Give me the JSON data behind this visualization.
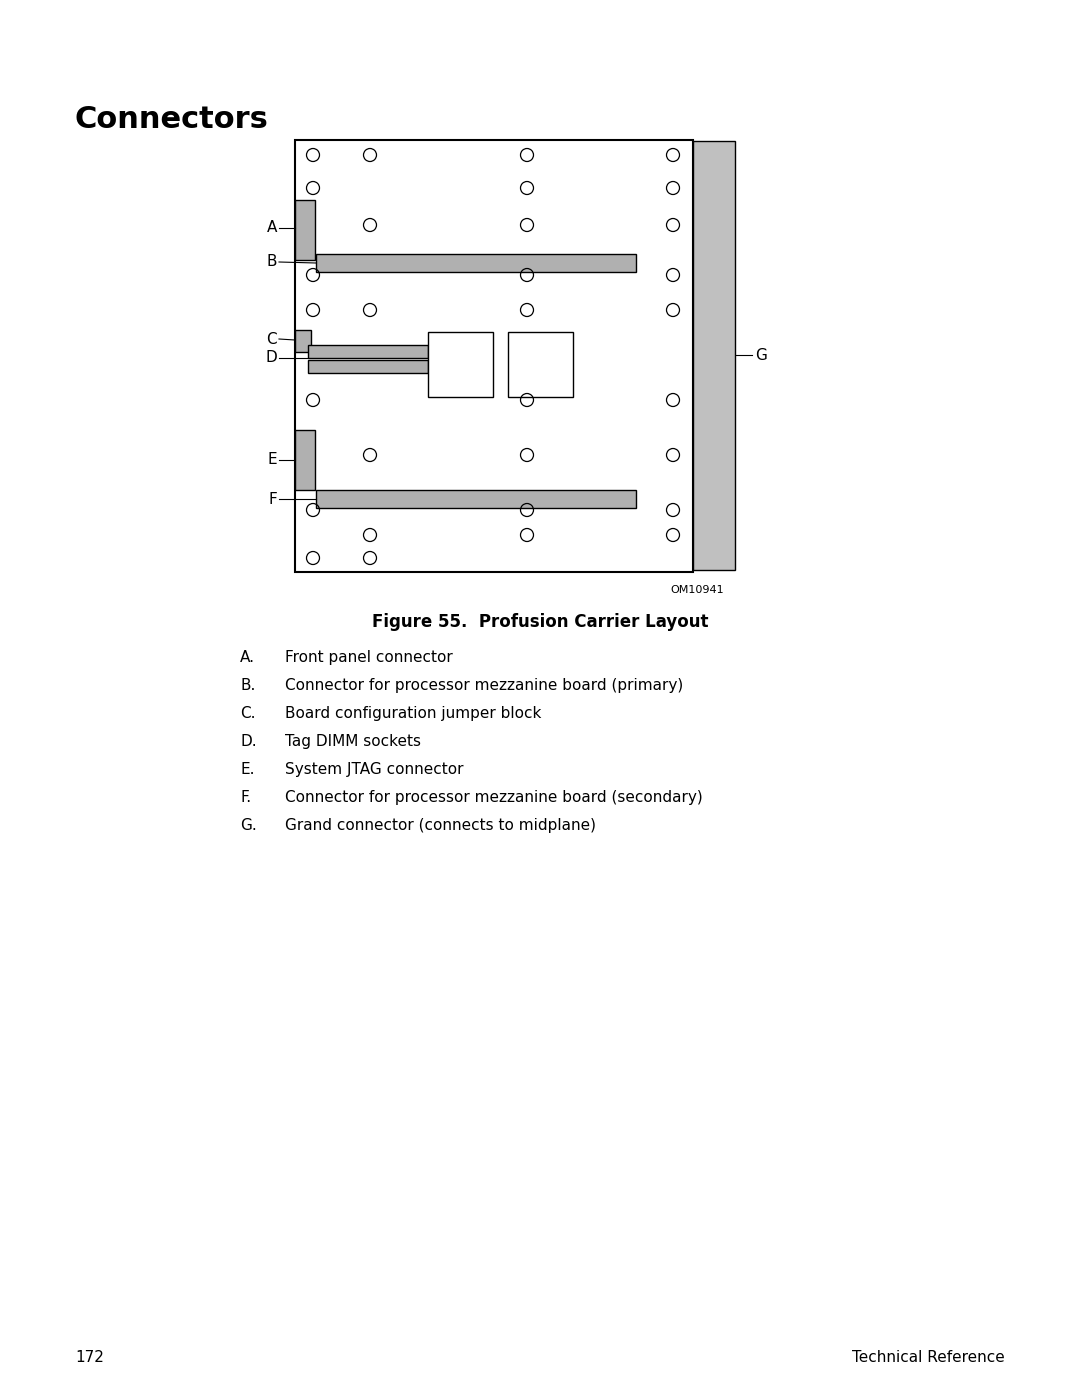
{
  "title": "Connectors",
  "figure_caption": "Figure 55.  Profusion Carrier Layout",
  "figure_id": "OM10941",
  "page_number": "172",
  "page_right": "Technical Reference",
  "legend": [
    {
      "label": "A.",
      "text": "Front panel connector"
    },
    {
      "label": "B.",
      "text": "Connector for processor mezzanine board (primary)"
    },
    {
      "label": "C.",
      "text": "Board configuration jumper block"
    },
    {
      "label": "D.",
      "text": "Tag DIMM sockets"
    },
    {
      "label": "E.",
      "text": "System JTAG connector"
    },
    {
      "label": "F.",
      "text": "Connector for processor mezzanine board (secondary)"
    },
    {
      "label": "G.",
      "text": "Grand connector (connects to midplane)"
    }
  ],
  "bg_color": "#ffffff",
  "board_color": "#ffffff",
  "board_edge": "#000000",
  "connector_fill": "#b0b0b0",
  "connector_edge": "#000000",
  "gc_fill": "#c0c0c0",
  "gc_edge": "#000000",
  "dimm_fill": "#ffffff",
  "dimm_edge": "#000000"
}
